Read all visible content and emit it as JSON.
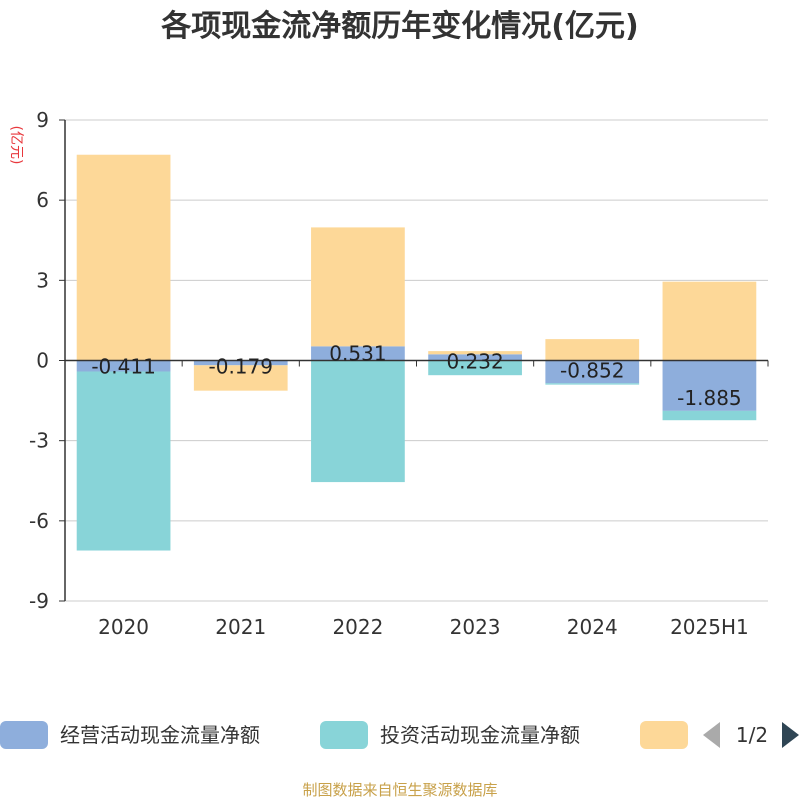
{
  "chart_data": {
    "type": "bar",
    "stacked": true,
    "title": "各项现金流净额历年变化情况(亿元)",
    "ylabel": "(亿元)",
    "ylim": [
      -9,
      9
    ],
    "yticks": [
      9,
      6,
      3,
      0,
      -3,
      -6,
      -9
    ],
    "categories": [
      "2020",
      "2021",
      "2022",
      "2023",
      "2024",
      "2025H1"
    ],
    "series": [
      {
        "name": "经营活动现金流量净额",
        "color": "#8eaedc",
        "values": [
          -0.411,
          -0.179,
          0.531,
          0.232,
          -0.852,
          -1.885
        ],
        "labels": [
          "-0.411",
          "-0.179",
          "0.531",
          "0.232",
          "-0.852",
          "-1.885"
        ]
      },
      {
        "name": "投资活动现金流量净额",
        "color": "#88d4d8",
        "values": [
          -6.7,
          0,
          -4.55,
          -0.55,
          -0.05,
          -0.35
        ]
      },
      {
        "name": "",
        "color": "#fdd898",
        "values": [
          7.7,
          -0.95,
          4.45,
          0.12,
          0.8,
          2.95
        ]
      }
    ],
    "grid": true,
    "legend": "bottom"
  },
  "legend": {
    "page_indicator": "1/2"
  },
  "footer": {
    "source": "制图数据来自恒生聚源数据库"
  }
}
